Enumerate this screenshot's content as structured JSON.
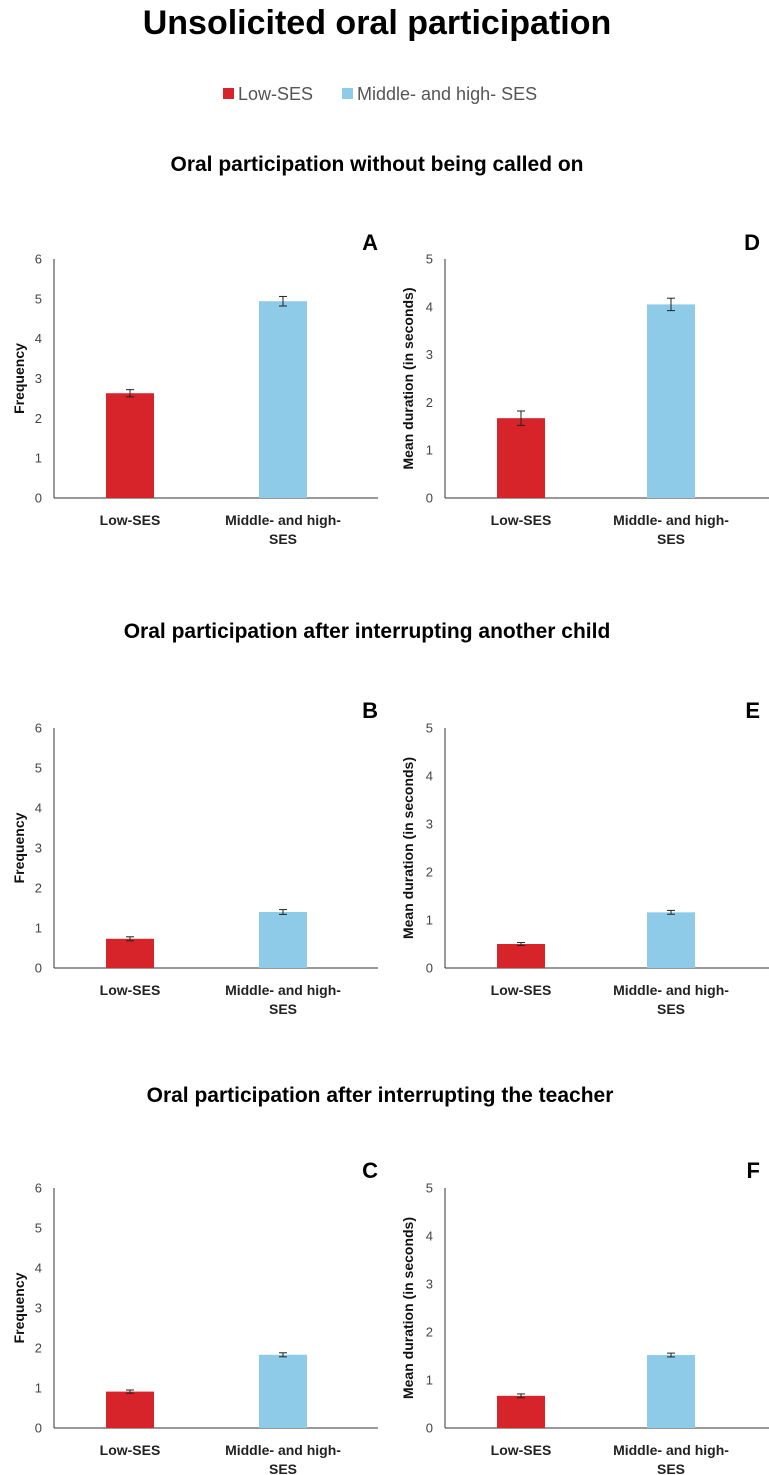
{
  "title": "Unsolicited oral participation",
  "legend": [
    {
      "label": "Low-SES",
      "color": "#d7242b"
    },
    {
      "label": "Middle- and high- SES",
      "color": "#8ecbe8"
    }
  ],
  "rows": [
    {
      "title": "Oral participation without being called on"
    },
    {
      "title": "Oral participation after interrupting another child"
    },
    {
      "title": "Oral participation after interrupting the teacher"
    }
  ],
  "chart_data": [
    {
      "panel": "A",
      "type": "bar",
      "row": 0,
      "col": 0,
      "categories": [
        [
          "Low-SES"
        ],
        [
          "Middle- and high-",
          "SES"
        ]
      ],
      "series": [
        {
          "values": [
            2.63,
            4.94
          ],
          "errors": [
            0.09,
            0.12
          ],
          "colors": [
            "#d7242b",
            "#8ecbe8"
          ]
        }
      ],
      "ylabel": "Frequency",
      "ylim": [
        0,
        6
      ],
      "yticks": [
        0,
        1,
        2,
        3,
        4,
        5,
        6
      ]
    },
    {
      "panel": "D",
      "type": "bar",
      "row": 0,
      "col": 1,
      "categories": [
        [
          "Low-SES"
        ],
        [
          "Middle- and high-",
          "SES"
        ]
      ],
      "series": [
        {
          "values": [
            1.67,
            4.05
          ],
          "errors": [
            0.15,
            0.13
          ],
          "colors": [
            "#d7242b",
            "#8ecbe8"
          ]
        }
      ],
      "ylabel": "Mean duration (in seconds)",
      "ylim": [
        0,
        5
      ],
      "yticks": [
        0,
        1,
        2,
        3,
        4,
        5
      ]
    },
    {
      "panel": "B",
      "type": "bar",
      "row": 1,
      "col": 0,
      "categories": [
        [
          "Low-SES"
        ],
        [
          "Middle- and high-",
          "SES"
        ]
      ],
      "series": [
        {
          "values": [
            0.73,
            1.4
          ],
          "errors": [
            0.05,
            0.06
          ],
          "colors": [
            "#d7242b",
            "#8ecbe8"
          ]
        }
      ],
      "ylabel": "Frequency",
      "ylim": [
        0,
        6
      ],
      "yticks": [
        0,
        1,
        2,
        3,
        4,
        5,
        6
      ]
    },
    {
      "panel": "E",
      "type": "bar",
      "row": 1,
      "col": 1,
      "categories": [
        [
          "Low-SES"
        ],
        [
          "Middle- and high-",
          "SES"
        ]
      ],
      "series": [
        {
          "values": [
            0.5,
            1.16
          ],
          "errors": [
            0.03,
            0.04
          ],
          "colors": [
            "#d7242b",
            "#8ecbe8"
          ]
        }
      ],
      "ylabel": "Mean duration (in seconds)",
      "ylim": [
        0,
        5
      ],
      "yticks": [
        0,
        1,
        2,
        3,
        4,
        5
      ]
    },
    {
      "panel": "C",
      "type": "bar",
      "row": 2,
      "col": 0,
      "categories": [
        [
          "Low-SES"
        ],
        [
          "Middle- and high-",
          "SES"
        ]
      ],
      "series": [
        {
          "values": [
            0.91,
            1.83
          ],
          "errors": [
            0.04,
            0.05
          ],
          "colors": [
            "#d7242b",
            "#8ecbe8"
          ]
        }
      ],
      "ylabel": "Frequency",
      "ylim": [
        0,
        6
      ],
      "yticks": [
        0,
        1,
        2,
        3,
        4,
        5,
        6
      ]
    },
    {
      "panel": "F",
      "type": "bar",
      "row": 2,
      "col": 1,
      "categories": [
        [
          "Low-SES"
        ],
        [
          "Middle- and high-",
          "SES"
        ]
      ],
      "series": [
        {
          "values": [
            0.67,
            1.52
          ],
          "errors": [
            0.04,
            0.04
          ],
          "colors": [
            "#d7242b",
            "#8ecbe8"
          ]
        }
      ],
      "ylabel": "Mean duration (in seconds)",
      "ylim": [
        0,
        5
      ],
      "yticks": [
        0,
        1,
        2,
        3,
        4,
        5
      ]
    }
  ]
}
